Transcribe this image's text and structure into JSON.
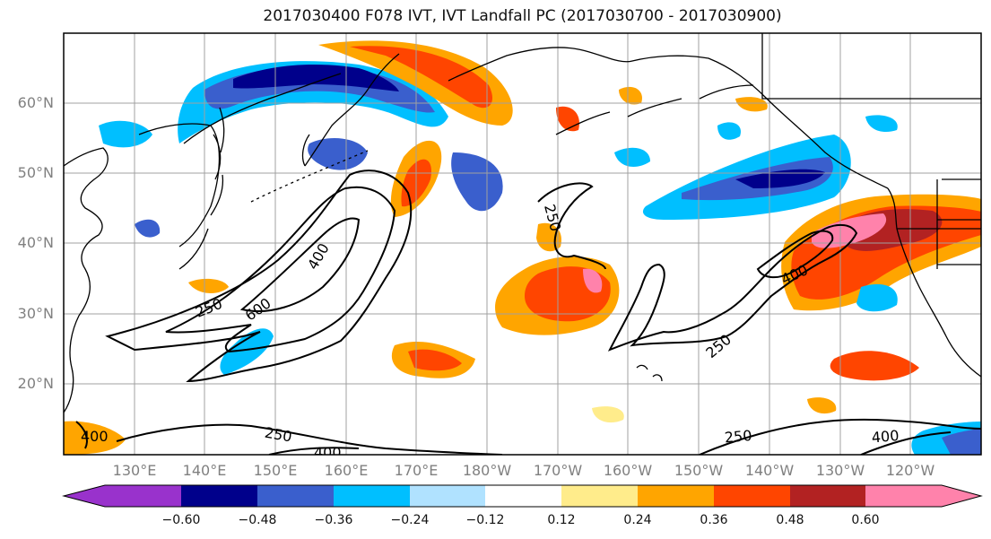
{
  "title": "2017030400 F078 IVT, IVT Landfall PC (2017030700 - 2017030900)",
  "lat_labels": [
    "60°N",
    "50°N",
    "40°N",
    "30°N",
    "20°N"
  ],
  "lon_labels": [
    "130°E",
    "140°E",
    "150°E",
    "160°E",
    "170°E",
    "180°W",
    "170°W",
    "160°W",
    "150°W",
    "140°W",
    "130°W",
    "120°W"
  ],
  "contour_labels": [
    "250",
    "400",
    "600",
    "400",
    "250",
    "250",
    "250",
    "400",
    "250",
    "400",
    "400"
  ],
  "colorbar": {
    "ticks": [
      "−0.60",
      "−0.48",
      "−0.36",
      "−0.24",
      "−0.12",
      "0.12",
      "0.24",
      "0.36",
      "0.48",
      "0.60"
    ],
    "colors": [
      "#9932cc",
      "#00008b",
      "#3a5fcd",
      "#00bfff",
      "#b0e2ff",
      "#ffffff",
      "#ffec8b",
      "#ffa500",
      "#ff4500",
      "#b22222",
      "#ff82ab",
      "#ff82ab"
    ]
  },
  "colors": {
    "coast": "#000000",
    "grid": "#a0a0a0",
    "contour": "#000000"
  }
}
